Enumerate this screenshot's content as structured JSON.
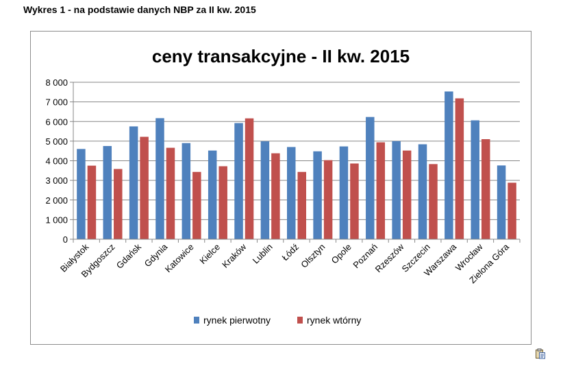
{
  "caption": "Wykres 1 - na podstawie danych NBP za II kw. 2015",
  "icons": {
    "paste": "clipboard-paste-icon"
  },
  "colors": {
    "series1": "#4F81BD",
    "series2": "#C0504D",
    "grid": "#868686",
    "axis": "#868686"
  },
  "chart_data": {
    "type": "bar",
    "title": "ceny transakcyjne - II kw. 2015",
    "xlabel": "",
    "ylabel": "",
    "ylim": [
      0,
      8000
    ],
    "yticks": [
      0,
      1000,
      2000,
      3000,
      4000,
      5000,
      6000,
      7000,
      8000
    ],
    "ytick_labels": [
      "0",
      "1 000",
      "2 000",
      "3 000",
      "4 000",
      "5 000",
      "6 000",
      "7 000",
      "8 000"
    ],
    "grid": true,
    "legend": "bottom",
    "categories": [
      "Białystok",
      "Bydgoszcz",
      "Gdańsk",
      "Gdynia",
      "Katowice",
      "Kielce",
      "Kraków",
      "Lublin",
      "Łódź",
      "Olsztyn",
      "Opole",
      "Poznań",
      "Rzeszów",
      "Szczecin",
      "Warszawa",
      "Wrocław",
      "Zielona Góra"
    ],
    "series": [
      {
        "name": "rynek pierwotny",
        "color": "#4F81BD",
        "values": [
          4600,
          4750,
          5750,
          6170,
          4900,
          4520,
          5920,
          4990,
          4700,
          4480,
          4730,
          6230,
          5000,
          4840,
          7530,
          6060,
          3760
        ]
      },
      {
        "name": "rynek wtórny",
        "color": "#C0504D",
        "values": [
          3750,
          3580,
          5220,
          4660,
          3430,
          3720,
          6160,
          4380,
          3430,
          4030,
          3860,
          4940,
          4520,
          3830,
          7180,
          5100,
          2880
        ]
      }
    ]
  }
}
